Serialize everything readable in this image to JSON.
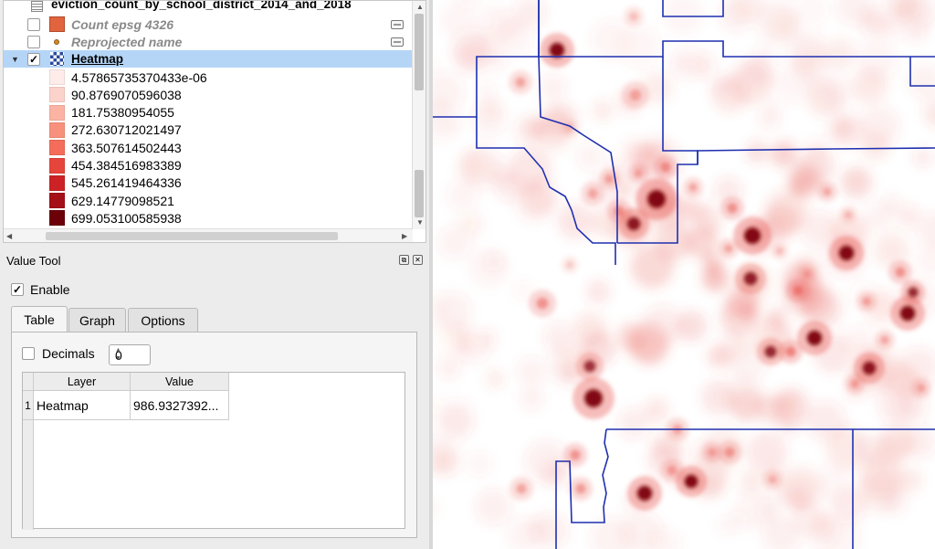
{
  "layers_panel": {
    "top_layer_name": "eviction_count_by_school_district_2014_and_2018",
    "layers": [
      {
        "name": "Count epsg 4326",
        "color": "#e2643e",
        "checked": false
      },
      {
        "name": "Reprojected name",
        "color": "#d08a2a",
        "checked": false
      },
      {
        "name": "Heatmap",
        "checked": true,
        "selected": true
      }
    ],
    "legend": [
      {
        "value": "4.57865735370433e-06",
        "color": "#fdecea"
      },
      {
        "value": "90.8769070596038",
        "color": "#fcd3cb"
      },
      {
        "value": "181.75380954055",
        "color": "#fbb4a3"
      },
      {
        "value": "272.630712021497",
        "color": "#f8917c"
      },
      {
        "value": "363.507614502443",
        "color": "#f36d5a"
      },
      {
        "value": "454.384516983389",
        "color": "#e6453c"
      },
      {
        "value": "545.261419464336",
        "color": "#cc2226"
      },
      {
        "value": "629.14779098521",
        "color": "#a40f18"
      },
      {
        "value": "699.053100585938",
        "color": "#6b0009"
      }
    ]
  },
  "value_tool": {
    "title": "Value Tool",
    "enable_label": "Enable",
    "enable_checked": true,
    "tabs": [
      "Table",
      "Graph",
      "Options"
    ],
    "active_tab": "Table",
    "decimals_label": "Decimals",
    "decimals_checked": false,
    "decimals_value": "0",
    "table": {
      "headers": [
        "Layer",
        "Value"
      ],
      "rows": [
        {
          "index": "1",
          "layer": "Heatmap",
          "value": "986.9327392..."
        }
      ]
    }
  },
  "map": {
    "boundary_color": "#1f2fb0",
    "heat_color": "#e6453c",
    "hotspot_color": "#7a000c"
  }
}
